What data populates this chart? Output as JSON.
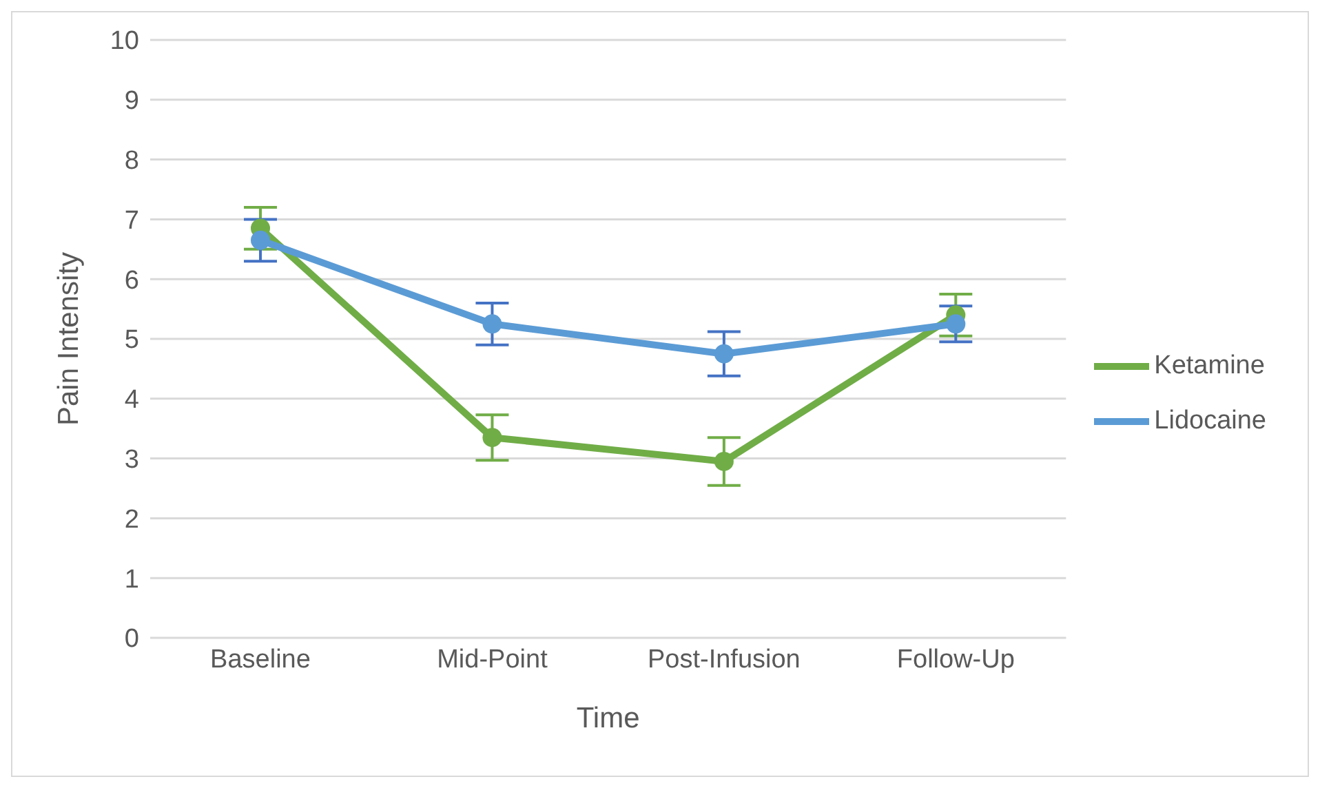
{
  "chart_data": {
    "type": "line",
    "xlabel": "Time",
    "ylabel": "Pain Intensity",
    "categories": [
      "Baseline",
      "Mid-Point",
      "Post-Infusion",
      "Follow-Up"
    ],
    "series": [
      {
        "name": "Ketamine",
        "color": "#70ad47",
        "values": [
          6.85,
          3.35,
          2.95,
          5.4
        ],
        "errors": [
          0.35,
          0.38,
          0.4,
          0.35
        ]
      },
      {
        "name": "Lidocaine",
        "color": "#5b9bd5",
        "values": [
          6.65,
          5.25,
          4.75,
          5.25
        ],
        "errors": [
          0.35,
          0.35,
          0.37,
          0.3
        ]
      }
    ],
    "ylim": [
      0,
      10
    ],
    "yticks": [
      0,
      1,
      2,
      3,
      4,
      5,
      6,
      7,
      8,
      9,
      10
    ],
    "grid": "y",
    "legend": "right",
    "marker": "circle",
    "line_style": "solid"
  }
}
